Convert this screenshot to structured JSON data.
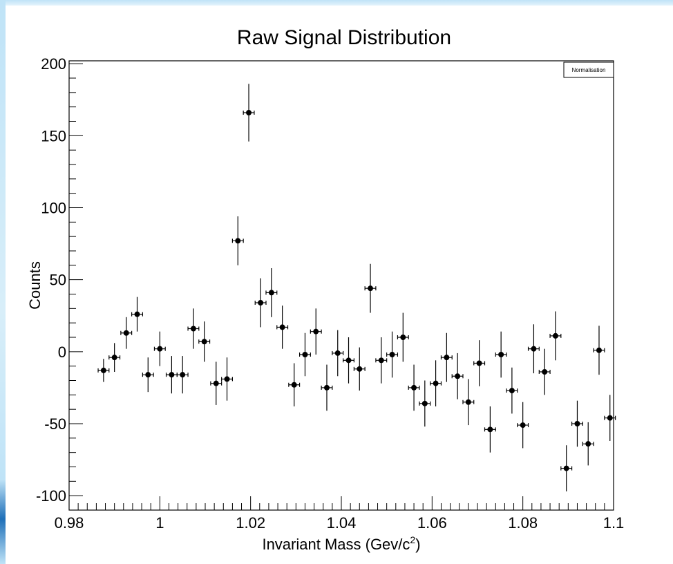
{
  "chart_data": {
    "type": "scatter",
    "title": "Raw Signal Distribution",
    "xlabel": "Invariant Mass (Gev/c",
    "xlabel_sup": "2",
    "xlabel_suffix": ")",
    "ylabel": "Counts",
    "xlim": [
      0.98,
      1.1
    ],
    "ylim": [
      -110,
      202
    ],
    "x_ticks": [
      0.98,
      1,
      1.02,
      1.04,
      1.06,
      1.08,
      1.1
    ],
    "x_tick_labels": [
      "0.98",
      "1",
      "1.02",
      "1.04",
      "1.06",
      "1.08",
      "1.1"
    ],
    "y_ticks": [
      -100,
      -50,
      0,
      50,
      100,
      150,
      200
    ],
    "y_tick_labels": [
      "-100",
      "-50",
      "0",
      "50",
      "100",
      "150",
      "200"
    ],
    "legend": {
      "label": "Normalisation",
      "position": "top-right"
    },
    "grid": false,
    "bin_half_width": 0.0012,
    "series": [
      {
        "color": "#000000",
        "points": [
          {
            "x": 0.9876,
            "y": -13,
            "err": 8
          },
          {
            "x": 0.99,
            "y": -4,
            "err": 10
          },
          {
            "x": 0.9926,
            "y": 13,
            "err": 11
          },
          {
            "x": 0.995,
            "y": 26,
            "err": 12
          },
          {
            "x": 0.9974,
            "y": -16,
            "err": 12
          },
          {
            "x": 1.0,
            "y": 2,
            "err": 12
          },
          {
            "x": 1.0026,
            "y": -16,
            "err": 13
          },
          {
            "x": 1.005,
            "y": -16,
            "err": 13
          },
          {
            "x": 1.0074,
            "y": 16,
            "err": 14
          },
          {
            "x": 1.0098,
            "y": 7,
            "err": 14
          },
          {
            "x": 1.0124,
            "y": -22,
            "err": 15
          },
          {
            "x": 1.0148,
            "y": -19,
            "err": 15
          },
          {
            "x": 1.0172,
            "y": 77,
            "err": 17
          },
          {
            "x": 1.0196,
            "y": 166,
            "err": 20
          },
          {
            "x": 1.0222,
            "y": 34,
            "err": 17
          },
          {
            "x": 1.0246,
            "y": 41,
            "err": 17
          },
          {
            "x": 1.027,
            "y": 17,
            "err": 15
          },
          {
            "x": 1.0296,
            "y": -23,
            "err": 15
          },
          {
            "x": 1.032,
            "y": -2,
            "err": 15
          },
          {
            "x": 1.0344,
            "y": 14,
            "err": 16
          },
          {
            "x": 1.0368,
            "y": -25,
            "err": 16
          },
          {
            "x": 1.0392,
            "y": -1,
            "err": 16
          },
          {
            "x": 1.0416,
            "y": -6,
            "err": 16
          },
          {
            "x": 1.044,
            "y": -12,
            "err": 15
          },
          {
            "x": 1.0464,
            "y": 44,
            "err": 17
          },
          {
            "x": 1.0488,
            "y": -6,
            "err": 16
          },
          {
            "x": 1.0512,
            "y": -2,
            "err": 16
          },
          {
            "x": 1.0536,
            "y": 10,
            "err": 17
          },
          {
            "x": 1.056,
            "y": -25,
            "err": 16
          },
          {
            "x": 1.0584,
            "y": -36,
            "err": 16
          },
          {
            "x": 1.0608,
            "y": -22,
            "err": 16
          },
          {
            "x": 1.0632,
            "y": -4,
            "err": 17
          },
          {
            "x": 1.0656,
            "y": -17,
            "err": 16
          },
          {
            "x": 1.068,
            "y": -35,
            "err": 16
          },
          {
            "x": 1.0704,
            "y": -8,
            "err": 16
          },
          {
            "x": 1.0728,
            "y": -54,
            "err": 16
          },
          {
            "x": 1.0752,
            "y": -2,
            "err": 16
          },
          {
            "x": 1.0776,
            "y": -27,
            "err": 16
          },
          {
            "x": 1.08,
            "y": -51,
            "err": 16
          },
          {
            "x": 1.0824,
            "y": 2,
            "err": 17
          },
          {
            "x": 1.0848,
            "y": -14,
            "err": 16
          },
          {
            "x": 1.0872,
            "y": 11,
            "err": 17
          },
          {
            "x": 1.0896,
            "y": -81,
            "err": 16
          },
          {
            "x": 1.092,
            "y": -50,
            "err": 16
          },
          {
            "x": 1.0944,
            "y": -64,
            "err": 15
          },
          {
            "x": 1.0968,
            "y": 1,
            "err": 17
          },
          {
            "x": 1.0992,
            "y": -46,
            "err": 16
          }
        ]
      }
    ]
  }
}
